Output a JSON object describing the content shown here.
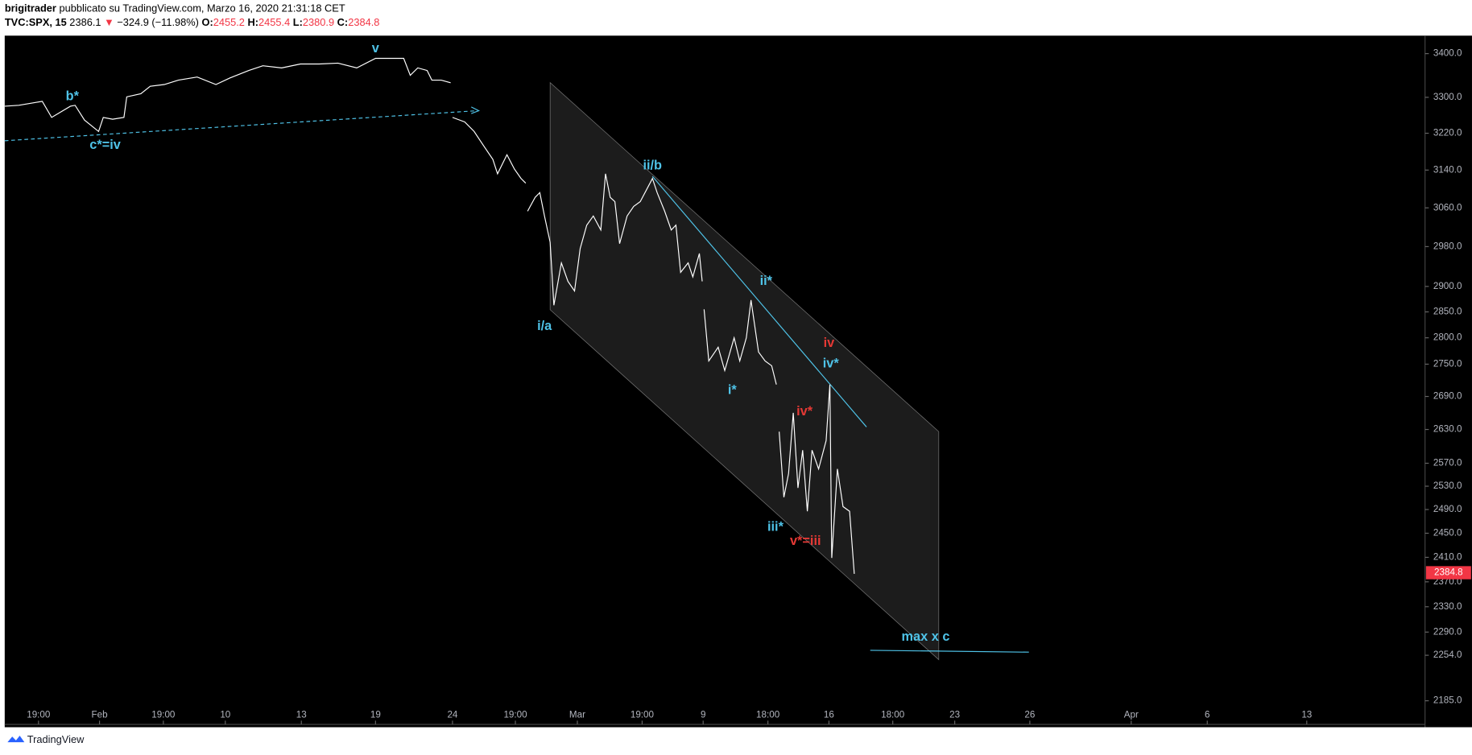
{
  "header": {
    "author": "brigitrader",
    "published": "pubblicato su TradingView.com, Marzo 16, 2020 21:31:18 CET",
    "symbol": "TVC:SPX, 15",
    "last": "2386.1",
    "arrow": "▼",
    "change": "−324.9 (−11.98%)",
    "o_label": "O:",
    "o": "2455.2",
    "h_label": "H:",
    "h": "2455.4",
    "l_label": "L:",
    "l": "2380.9",
    "c_label": "C:",
    "c": "2384.8"
  },
  "footer": {
    "brand": "TradingView"
  },
  "chart_data": {
    "type": "line",
    "color": "#ffffff",
    "log_scale": true,
    "x": [
      0,
      15,
      40,
      50,
      70,
      75,
      85,
      100,
      105,
      115,
      127,
      130,
      145,
      155,
      170,
      185,
      205,
      225,
      240,
      260,
      275,
      295,
      315,
      335,
      355,
      375,
      395,
      405,
      425,
      432,
      440,
      450,
      455,
      465,
      475,
      null,
      477,
      490,
      500,
      510,
      520,
      525,
      535,
      543,
      550,
      555,
      null,
      557,
      565,
      570,
      575,
      581,
      585,
      593,
      600,
      607,
      613,
      620,
      627,
      635,
      640,
      645,
      650,
      655,
      663,
      670,
      677,
      685,
      690,
      695,
      703,
      710,
      715,
      720,
      728,
      733,
      740,
      743,
      null,
      745,
      750,
      760,
      767,
      777,
      783,
      790,
      795,
      803,
      810,
      817,
      822,
      null,
      825,
      830,
      835,
      840,
      845,
      850,
      855,
      860,
      867,
      875,
      879,
      881,
      887,
      893,
      900,
      905
    ],
    "values": [
      3280,
      3282,
      3291,
      3255,
      3280,
      3282,
      3249,
      3224,
      3255,
      3251,
      3255,
      3301,
      3308,
      3325,
      3329,
      3339,
      3346,
      3329,
      3344,
      3361,
      3372,
      3367,
      3376,
      3376,
      3378,
      3367,
      3389,
      3389,
      3389,
      3350,
      3367,
      3361,
      3339,
      3339,
      3333,
      null,
      3255,
      3245,
      3224,
      3193,
      3163,
      3132,
      3173,
      3142,
      3122,
      3112,
      null,
      3053,
      3082,
      3092,
      3043,
      2989,
      2863,
      2947,
      2910,
      2891,
      2976,
      3024,
      3043,
      3014,
      3132,
      3082,
      3073,
      2986,
      3043,
      3063,
      3073,
      3103,
      3122,
      3092,
      3053,
      3014,
      3024,
      2928,
      2947,
      2919,
      2966,
      2910,
      null,
      2855,
      2756,
      2782,
      2738,
      2800,
      2756,
      2800,
      2873,
      2773,
      2756,
      2747,
      2712,
      null,
      2626,
      2511,
      2552,
      2660,
      2527,
      2593,
      2487,
      2593,
      2560,
      2610,
      2712,
      2409,
      2560,
      2495,
      2487,
      2383
    ],
    "xlim": [
      0,
      1513
    ],
    "xticks": [
      {
        "value": 36,
        "label": "19:00"
      },
      {
        "value": 101,
        "label": "Feb"
      },
      {
        "value": 169,
        "label": "19:00"
      },
      {
        "value": 235,
        "label": "10"
      },
      {
        "value": 316,
        "label": "13"
      },
      {
        "value": 395,
        "label": "19"
      },
      {
        "value": 477,
        "label": "24"
      },
      {
        "value": 544,
        "label": "19:00"
      },
      {
        "value": 610,
        "label": "Mar"
      },
      {
        "value": 679,
        "label": "19:00"
      },
      {
        "value": 744,
        "label": "9"
      },
      {
        "value": 813,
        "label": "18:00"
      },
      {
        "value": 878,
        "label": "16"
      },
      {
        "value": 946,
        "label": "18:00"
      },
      {
        "value": 1012,
        "label": "23"
      },
      {
        "value": 1092,
        "label": "26"
      },
      {
        "value": 1200,
        "label": "Apr"
      },
      {
        "value": 1281,
        "label": "6"
      },
      {
        "value": 1387,
        "label": "13"
      }
    ],
    "ylim": [
      2150,
      3442
    ],
    "yticks": [
      {
        "value": 3400,
        "label": "3400.0"
      },
      {
        "value": 3300,
        "label": "3300.0"
      },
      {
        "value": 3220,
        "label": "3220.0"
      },
      {
        "value": 3140,
        "label": "3140.0"
      },
      {
        "value": 3060,
        "label": "3060.0"
      },
      {
        "value": 2980,
        "label": "2980.0"
      },
      {
        "value": 2900,
        "label": "2900.0"
      },
      {
        "value": 2850,
        "label": "2850.0"
      },
      {
        "value": 2800,
        "label": "2800.0"
      },
      {
        "value": 2750,
        "label": "2750.0"
      },
      {
        "value": 2690,
        "label": "2690.0"
      },
      {
        "value": 2630,
        "label": "2630.0"
      },
      {
        "value": 2570,
        "label": "2570.0"
      },
      {
        "value": 2530,
        "label": "2530.0"
      },
      {
        "value": 2490,
        "label": "2490.0"
      },
      {
        "value": 2450,
        "label": "2450.0"
      },
      {
        "value": 2410,
        "label": "2410.0"
      },
      {
        "value": 2370,
        "label": "2370.0"
      },
      {
        "value": 2330,
        "label": "2330.0"
      },
      {
        "value": 2290,
        "label": "2290.0"
      },
      {
        "value": 2254,
        "label": "2254.0"
      },
      {
        "value": 2185,
        "label": "2185.0"
      }
    ],
    "last_price": 2384.8,
    "last_price_color": "#f23645",
    "annotations": [
      {
        "text": "v",
        "color": "#4fc3e8"
      },
      {
        "text": "b*",
        "color": "#4fc3e8"
      },
      {
        "text": "c*=iv",
        "color": "#4fc3e8"
      },
      {
        "text": "ii/b",
        "color": "#4fc3e8"
      },
      {
        "text": "i/a",
        "color": "#4fc3e8"
      },
      {
        "text": "ii*",
        "color": "#4fc3e8"
      },
      {
        "text": "i*",
        "color": "#4fc3e8"
      },
      {
        "text": "iv",
        "color": "#e53935"
      },
      {
        "text": "iv*",
        "color": "#4fc3e8"
      },
      {
        "text": "iv*",
        "color": "#e53935"
      },
      {
        "text": "iii*",
        "color": "#4fc3e8"
      },
      {
        "text": "v*=iii",
        "color": "#e53935"
      },
      {
        "text": "max x c",
        "color": "#4fc3e8"
      }
    ]
  }
}
